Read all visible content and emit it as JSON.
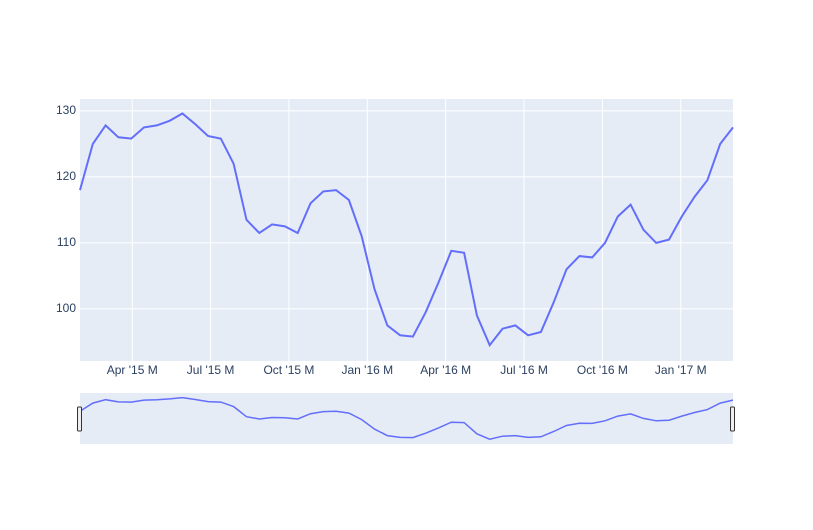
{
  "chart_data": {
    "type": "line",
    "xlim": [
      "2015-02",
      "2017-03"
    ],
    "xticks": [
      {
        "value": "2015-04",
        "label": "Apr '15 M"
      },
      {
        "value": "2015-07",
        "label": "Jul '15 M"
      },
      {
        "value": "2015-10",
        "label": "Oct '15 M"
      },
      {
        "value": "2016-01",
        "label": "Jan '16 M"
      },
      {
        "value": "2016-04",
        "label": "Apr '16 M"
      },
      {
        "value": "2016-07",
        "label": "Jul '16 M"
      },
      {
        "value": "2016-10",
        "label": "Oct '16 M"
      },
      {
        "value": "2017-01",
        "label": "Jan '17 M"
      }
    ],
    "ylim": [
      92.1,
      131.8
    ],
    "yticks": [
      100,
      110,
      120,
      130
    ],
    "grid": true,
    "rangeslider": true,
    "series": [
      {
        "color": "#636efa",
        "values": [
          118,
          125,
          127.8,
          126,
          125.8,
          127.5,
          127.8,
          128.5,
          129.6,
          128,
          126.2,
          125.8,
          122,
          113.5,
          111.5,
          112.8,
          112.5,
          111.5,
          116,
          117.8,
          118,
          116.5,
          111,
          103,
          97.5,
          96,
          95.8,
          99.5,
          104,
          108.8,
          108.5,
          99,
          94.5,
          97,
          97.5,
          96,
          96.5,
          101,
          106,
          108,
          107.8,
          110,
          114,
          115.8,
          112,
          110,
          110.5,
          114,
          117,
          119.5,
          125,
          127.5
        ]
      }
    ]
  }
}
